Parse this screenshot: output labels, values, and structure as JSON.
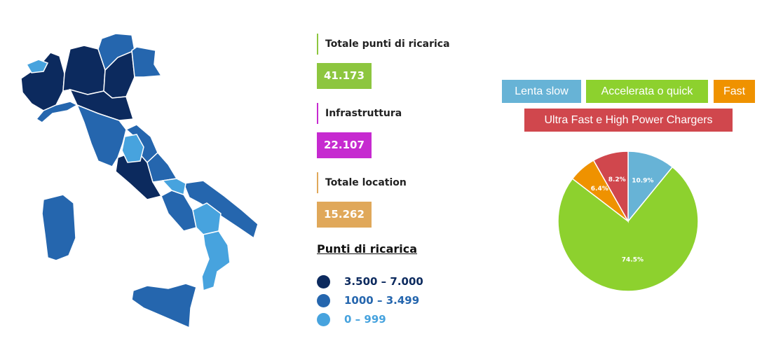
{
  "stats": [
    {
      "label": "Totale punti di ricarica",
      "value": "41.173",
      "color": "#8dc63f"
    },
    {
      "label": "Infrastruttura",
      "value": "22.107",
      "color": "#c62ad0"
    },
    {
      "label": "Totale location",
      "value": "15.262",
      "color": "#e0a85a"
    }
  ],
  "legend": {
    "title": "Punti di ricarica",
    "items": [
      {
        "label": "3.500 – 7.000",
        "color": "#0c2a5e"
      },
      {
        "label": "1000 – 3.499",
        "color": "#2566ae"
      },
      {
        "label": "0 – 999",
        "color": "#47a3de"
      }
    ]
  },
  "chart_data": {
    "type": "pie",
    "categories": [
      "Lenta slow",
      "Accelerata o quick",
      "Fast",
      "Ultra Fast e High Power Chargers"
    ],
    "values": [
      10.9,
      74.5,
      6.4,
      8.2
    ],
    "value_labels": [
      "10.9%",
      "74.5%",
      "6.4%",
      "8.2%"
    ],
    "colors": [
      "#67b3d6",
      "#8dd12e",
      "#ef9200",
      "#d0474d"
    ],
    "legend_position": "top"
  }
}
